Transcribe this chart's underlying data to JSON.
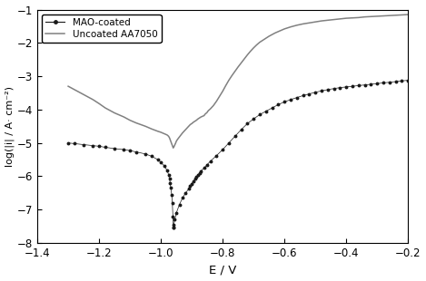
{
  "title": "",
  "xlabel": "E / V",
  "ylabel": "log(|i| / A· cm⁻²)",
  "xlim": [
    -1.4,
    -0.2
  ],
  "ylim": [
    -8,
    -1
  ],
  "yticks": [
    -8,
    -7,
    -6,
    -5,
    -4,
    -3,
    -2,
    -1
  ],
  "xticks": [
    -1.4,
    -1.2,
    -1.0,
    -0.8,
    -0.6,
    -0.4,
    -0.2
  ],
  "legend": [
    "MAO-coated",
    "Uncoated AA7050"
  ],
  "mao_color": "#1a1a1a",
  "uncoated_color": "#808080",
  "background": "#ffffff",
  "mao_x": [
    -1.3,
    -1.28,
    -1.25,
    -1.22,
    -1.2,
    -1.18,
    -1.15,
    -1.12,
    -1.1,
    -1.08,
    -1.05,
    -1.03,
    -1.01,
    -1.0,
    -0.99,
    -0.98,
    -0.975,
    -0.972,
    -0.97,
    -0.968,
    -0.965,
    -0.963,
    -0.961,
    -0.96,
    -0.96,
    -0.958,
    -0.955,
    -0.95,
    -0.94,
    -0.93,
    -0.92,
    -0.91,
    -0.905,
    -0.9,
    -0.895,
    -0.89,
    -0.885,
    -0.88,
    -0.875,
    -0.87,
    -0.86,
    -0.85,
    -0.84,
    -0.82,
    -0.8,
    -0.78,
    -0.76,
    -0.74,
    -0.72,
    -0.7,
    -0.68,
    -0.66,
    -0.64,
    -0.62,
    -0.6,
    -0.58,
    -0.56,
    -0.54,
    -0.52,
    -0.5,
    -0.48,
    -0.46,
    -0.44,
    -0.42,
    -0.4,
    -0.38,
    -0.36,
    -0.34,
    -0.32,
    -0.3,
    -0.28,
    -0.26,
    -0.24,
    -0.22,
    -0.2
  ],
  "mao_y": [
    -5.0,
    -5.02,
    -5.05,
    -5.08,
    -5.1,
    -5.13,
    -5.17,
    -5.2,
    -5.23,
    -5.27,
    -5.33,
    -5.4,
    -5.5,
    -5.58,
    -5.68,
    -5.82,
    -5.95,
    -6.08,
    -6.2,
    -6.35,
    -6.55,
    -6.8,
    -7.2,
    -7.55,
    -7.55,
    -7.45,
    -7.3,
    -7.1,
    -6.85,
    -6.65,
    -6.5,
    -6.38,
    -6.3,
    -6.22,
    -6.15,
    -6.08,
    -6.02,
    -5.96,
    -5.9,
    -5.84,
    -5.75,
    -5.65,
    -5.55,
    -5.38,
    -5.2,
    -5.0,
    -4.8,
    -4.6,
    -4.42,
    -4.28,
    -4.15,
    -4.05,
    -3.95,
    -3.85,
    -3.77,
    -3.7,
    -3.64,
    -3.58,
    -3.53,
    -3.48,
    -3.44,
    -3.4,
    -3.37,
    -3.34,
    -3.32,
    -3.3,
    -3.28,
    -3.26,
    -3.24,
    -3.22,
    -3.2,
    -3.18,
    -3.16,
    -3.14,
    -3.12
  ],
  "uncoated_x": [
    -1.3,
    -1.28,
    -1.25,
    -1.22,
    -1.2,
    -1.18,
    -1.15,
    -1.12,
    -1.1,
    -1.08,
    -1.05,
    -1.03,
    -1.01,
    -1.0,
    -0.99,
    -0.98,
    -0.975,
    -0.972,
    -0.97,
    -0.968,
    -0.966,
    -0.964,
    -0.962,
    -0.96,
    -0.96,
    -0.958,
    -0.956,
    -0.954,
    -0.952,
    -0.95,
    -0.95,
    -0.948,
    -0.945,
    -0.94,
    -0.935,
    -0.93,
    -0.925,
    -0.92,
    -0.915,
    -0.91,
    -0.905,
    -0.9,
    -0.895,
    -0.89,
    -0.885,
    -0.885,
    -0.88,
    -0.875,
    -0.87,
    -0.865,
    -0.86,
    -0.858,
    -0.855,
    -0.852,
    -0.85,
    -0.848,
    -0.845,
    -0.84,
    -0.83,
    -0.82,
    -0.81,
    -0.8,
    -0.79,
    -0.78,
    -0.77,
    -0.76,
    -0.75,
    -0.74,
    -0.73,
    -0.72,
    -0.71,
    -0.7,
    -0.69,
    -0.68,
    -0.67,
    -0.66,
    -0.65,
    -0.64,
    -0.63,
    -0.62,
    -0.61,
    -0.6,
    -0.58,
    -0.56,
    -0.54,
    -0.52,
    -0.5,
    -0.48,
    -0.46,
    -0.44,
    -0.42,
    -0.4,
    -0.38,
    -0.36,
    -0.34,
    -0.32,
    -0.3,
    -0.28,
    -0.26,
    -0.24,
    -0.22,
    -0.2
  ],
  "uncoated_y": [
    -3.3,
    -3.4,
    -3.55,
    -3.7,
    -3.82,
    -3.95,
    -4.1,
    -4.22,
    -4.32,
    -4.4,
    -4.5,
    -4.58,
    -4.65,
    -4.68,
    -4.72,
    -4.76,
    -4.8,
    -4.85,
    -4.9,
    -4.95,
    -5.0,
    -5.05,
    -5.1,
    -5.15,
    -5.15,
    -5.12,
    -5.08,
    -5.04,
    -5.0,
    -4.95,
    -4.95,
    -4.92,
    -4.88,
    -4.82,
    -4.76,
    -4.7,
    -4.65,
    -4.6,
    -4.55,
    -4.5,
    -4.45,
    -4.42,
    -4.38,
    -4.35,
    -4.32,
    -4.32,
    -4.28,
    -4.25,
    -4.22,
    -4.2,
    -4.18,
    -4.15,
    -4.12,
    -4.1,
    -4.08,
    -4.05,
    -4.02,
    -3.98,
    -3.88,
    -3.75,
    -3.6,
    -3.45,
    -3.28,
    -3.12,
    -2.98,
    -2.85,
    -2.72,
    -2.6,
    -2.48,
    -2.36,
    -2.25,
    -2.15,
    -2.06,
    -1.98,
    -1.92,
    -1.86,
    -1.8,
    -1.75,
    -1.7,
    -1.66,
    -1.62,
    -1.58,
    -1.52,
    -1.47,
    -1.43,
    -1.4,
    -1.37,
    -1.34,
    -1.32,
    -1.3,
    -1.28,
    -1.26,
    -1.25,
    -1.24,
    -1.22,
    -1.21,
    -1.2,
    -1.19,
    -1.18,
    -1.17,
    -1.16,
    -1.15
  ]
}
